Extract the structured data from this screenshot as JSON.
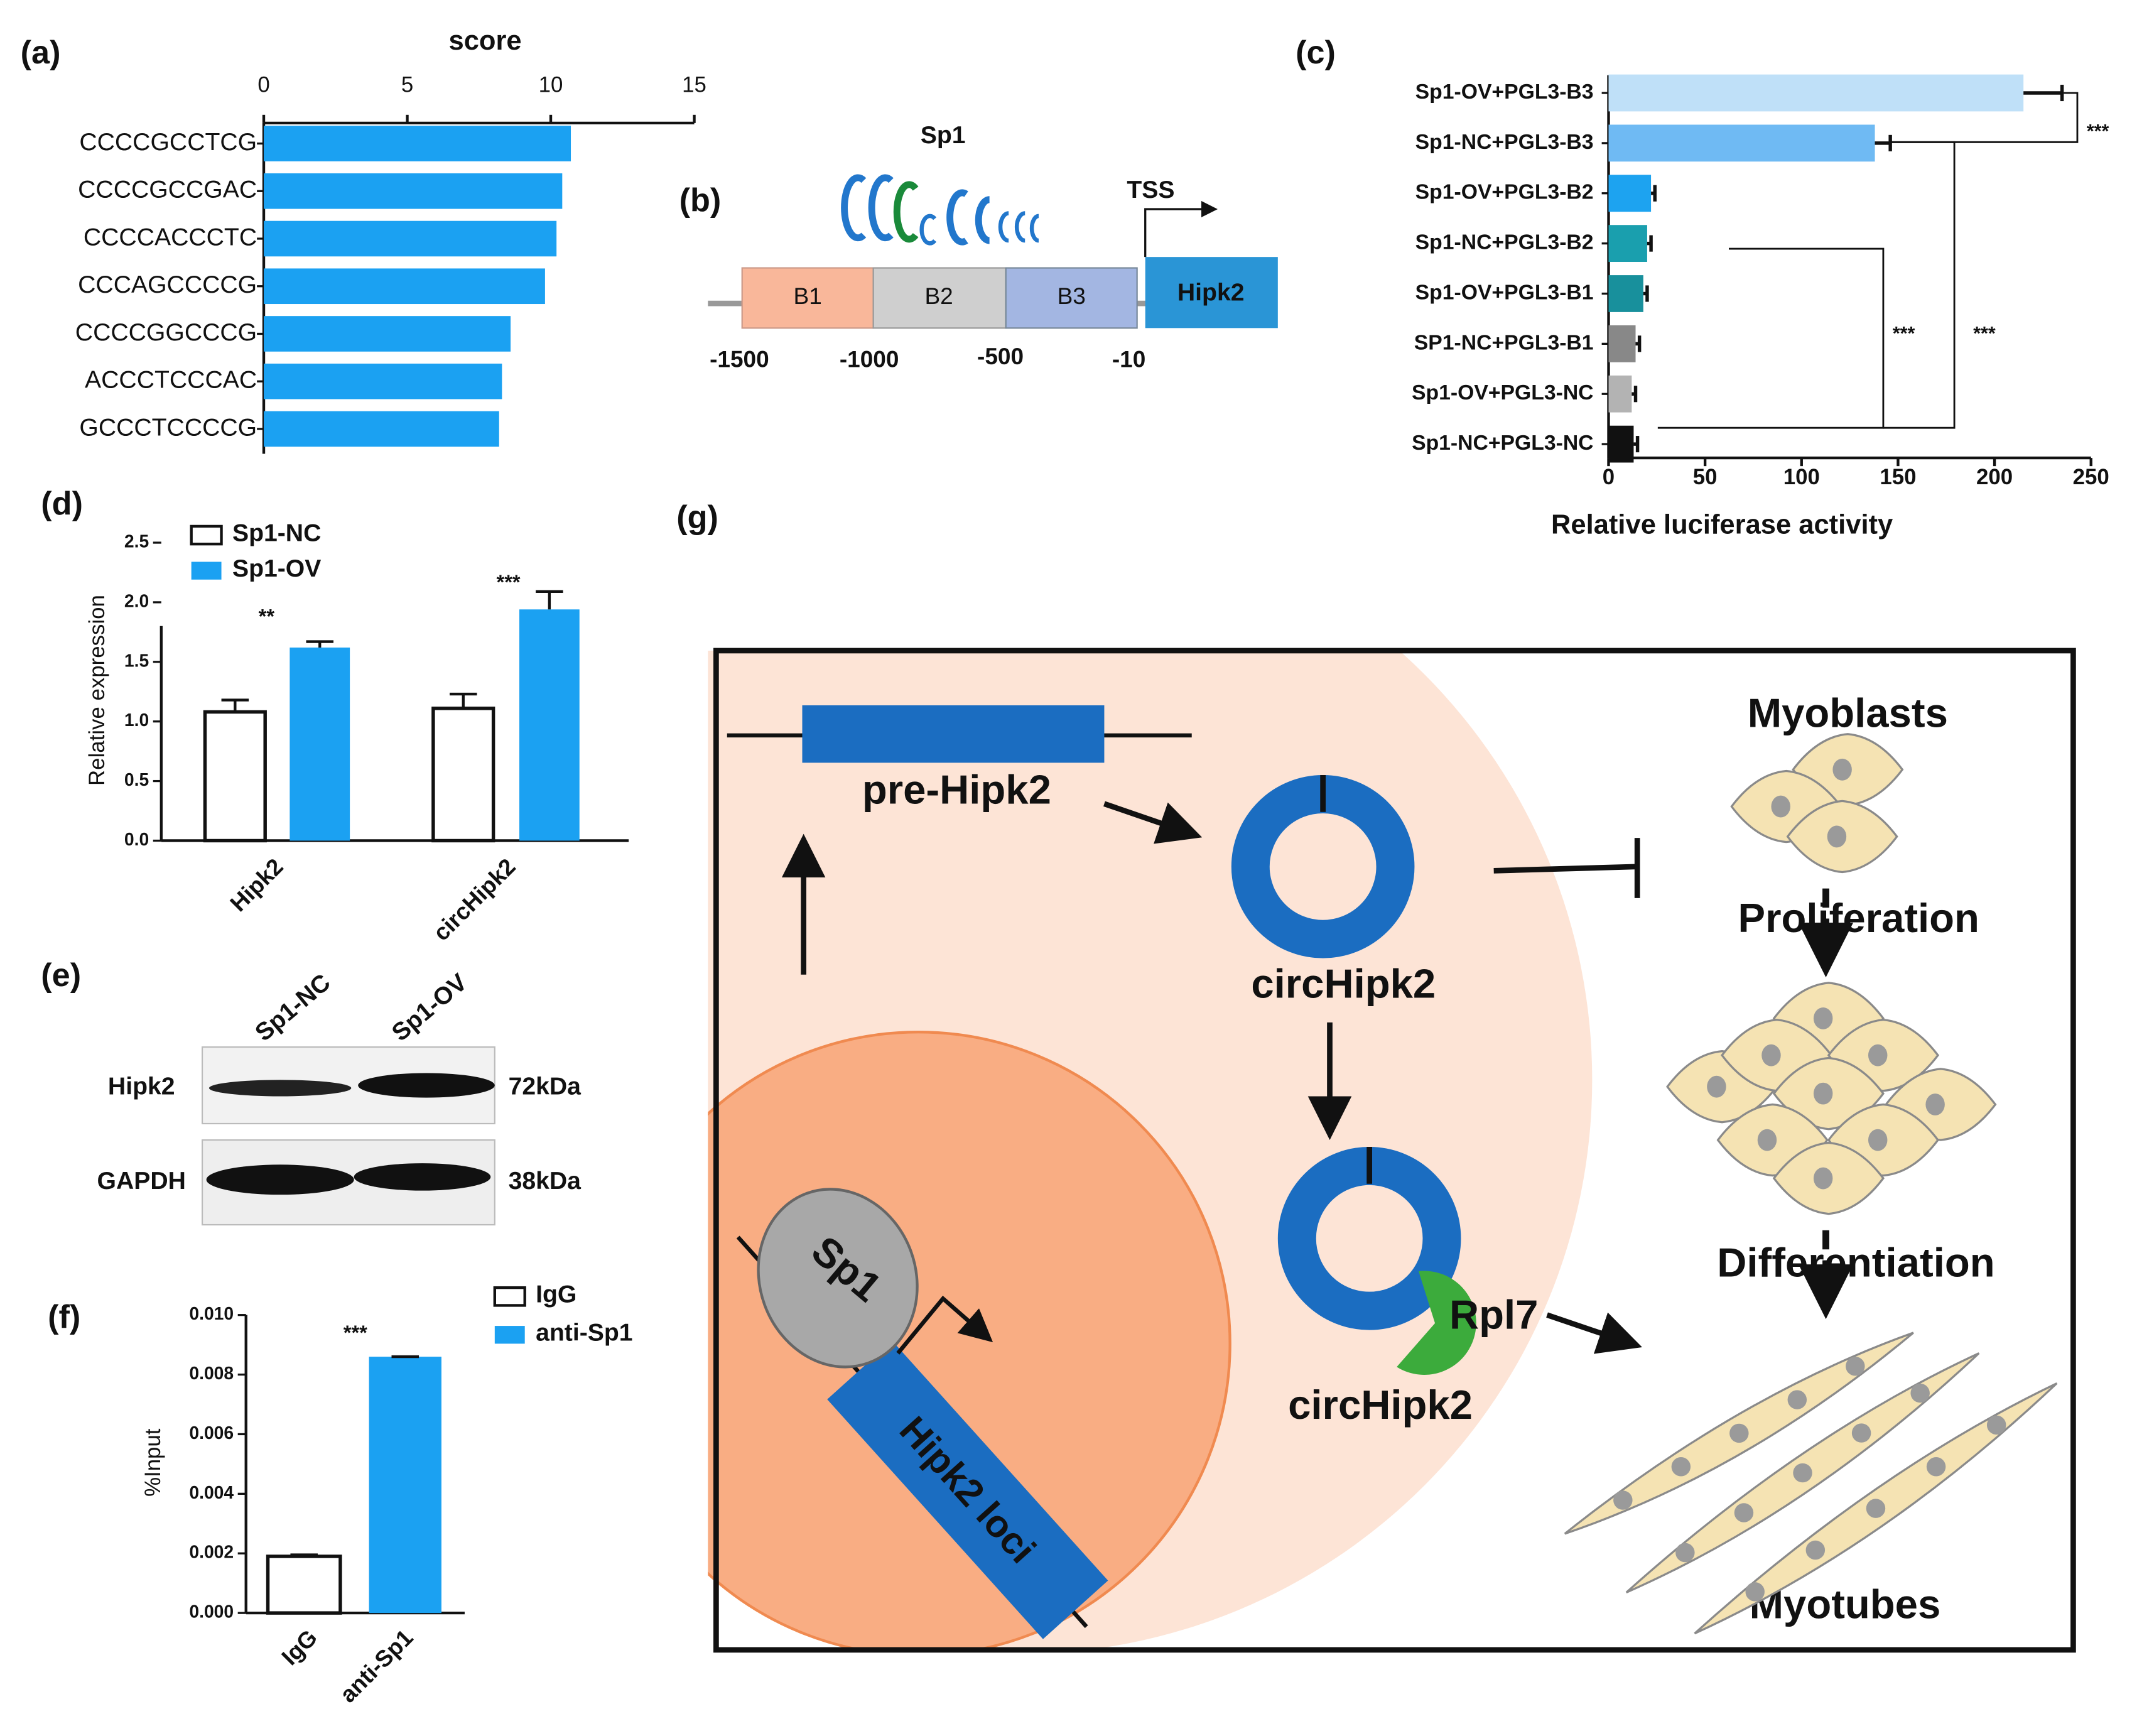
{
  "chart_data": [
    {
      "type": "hbar",
      "label": "(a)",
      "xlabel": "score",
      "categories": [
        "CCCCGCCTCG",
        "CCCCGCCGAC",
        "CCCCACCCTC",
        "CCCAGCCCCG",
        "CCCCGGCCCG",
        "ACCCTCCCAC",
        "GCCCTCCCCG"
      ],
      "values": [
        10.7,
        10.4,
        10.2,
        9.8,
        8.6,
        8.3,
        8.2
      ],
      "color": "#1ba1f2",
      "xlim": [
        0,
        15
      ],
      "xticks": [
        0,
        5,
        10,
        15
      ]
    },
    {
      "type": "hbar",
      "label": "(c)",
      "xlabel": "Relative luciferase activity",
      "categories": [
        "Sp1-OV+PGL3-B3",
        "Sp1-NC+PGL3-B3",
        "Sp1-OV+PGL3-B2",
        "Sp1-NC+PGL3-B2",
        "Sp1-OV+PGL3-B1",
        "SP1-NC+PGL3-B1",
        "Sp1-OV+PGL3-NC",
        "Sp1-NC+PGL3-NC"
      ],
      "values": [
        215,
        138,
        22,
        20,
        18,
        14,
        12,
        13
      ],
      "errors": [
        20,
        8,
        2,
        2,
        2,
        2,
        2,
        2
      ],
      "colors": [
        "#bfe0f8",
        "#6fbaf3",
        "#1da3f0",
        "#1a9fae",
        "#18909c",
        "#888888",
        "#b3b3b3",
        "#111111"
      ],
      "xlim": [
        0,
        250
      ],
      "xticks": [
        0,
        50,
        100,
        150,
        200,
        250
      ],
      "significance": [
        "***",
        "***",
        "***"
      ]
    },
    {
      "type": "vbar",
      "label": "(d)",
      "ylabel": "Relative expression",
      "categories": [
        "Hipk2",
        "circHipk2"
      ],
      "series": [
        {
          "name": "Sp1-NC",
          "color": "#ffffff",
          "values": [
            1.08,
            1.11
          ],
          "errors": [
            0.1,
            0.12
          ]
        },
        {
          "name": "Sp1-OV",
          "color": "#1ba1f2",
          "values": [
            1.62,
            1.94
          ],
          "errors": [
            0.05,
            0.15
          ]
        }
      ],
      "ylim": [
        0,
        2.5
      ],
      "yticks": [
        {
          "value": 0,
          "label": "0.0"
        },
        0.5,
        {
          "value": 1,
          "label": "1.0"
        },
        1.5,
        {
          "value": 2,
          "label": "2.0"
        },
        2.5
      ],
      "significance": [
        "**",
        "***"
      ]
    },
    {
      "type": "vbar",
      "label": "(f)",
      "ylabel": "%Input",
      "categories": [
        "IgG",
        "anti-Sp1"
      ],
      "values": [
        0.0019,
        0.0086
      ],
      "errors": [
        5e-05,
        0
      ],
      "colors": [
        "#ffffff",
        "#1ba1f2"
      ],
      "ylim": [
        0,
        0.01
      ],
      "yticks": [
        {
          "value": 0,
          "label": "0.000"
        },
        {
          "value": 0.002,
          "label": "0.002"
        },
        {
          "value": 0.004,
          "label": "0.004"
        },
        {
          "value": 0.006,
          "label": "0.006"
        },
        {
          "value": 0.008,
          "label": "0.008"
        },
        {
          "value": 0.01,
          "label": "0.010"
        }
      ],
      "significance": [
        "***"
      ]
    }
  ],
  "panel_b": {
    "label": "(b)",
    "factor": "Sp1",
    "tss": "TSS",
    "regions": [
      "B1",
      "B2",
      "B3"
    ],
    "gene": "Hipk2",
    "positions": [
      "-1500",
      "-1000",
      "-500",
      "-10"
    ]
  },
  "panel_e": {
    "label": "(e)",
    "lanes": [
      "Sp1-NC",
      "Sp1-OV"
    ],
    "rows": [
      {
        "protein": "Hipk2",
        "size": "72kDa"
      },
      {
        "protein": "GAPDH",
        "size": "38kDa"
      }
    ]
  },
  "panel_g": {
    "label": "(g)",
    "pre_gene": "pre-Hipk2",
    "circ": [
      "circHipk2",
      "circHipk2"
    ],
    "binding": "Rpl7",
    "factor": "Sp1",
    "locus": "Hipk2 loci",
    "stages": [
      "Myoblasts",
      "Proliferation",
      "Differentiation",
      "Myotubes"
    ]
  }
}
